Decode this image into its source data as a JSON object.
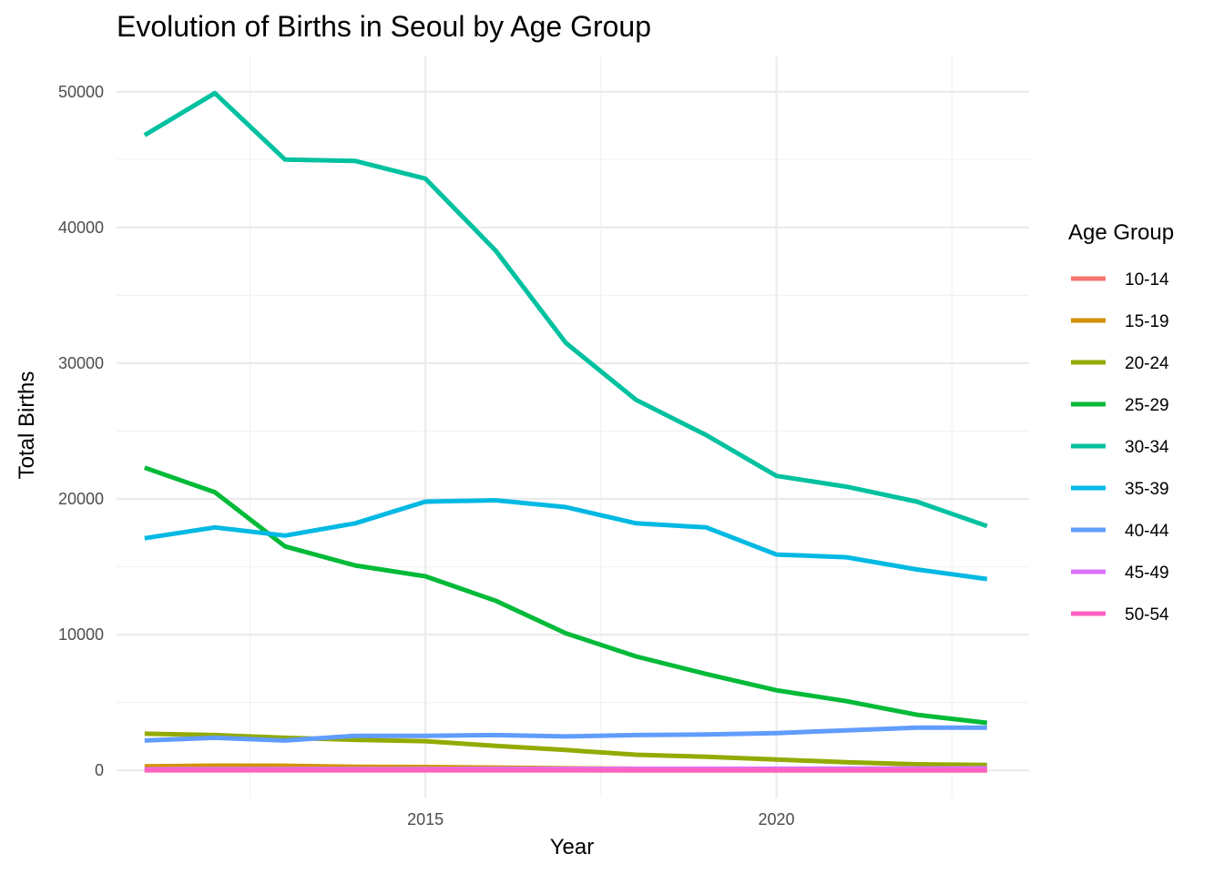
{
  "chart_data": {
    "type": "line",
    "title": "Evolution of Births in Seoul by Age Group",
    "xlabel": "Year",
    "ylabel": "Total Births",
    "x": [
      2011,
      2012,
      2013,
      2014,
      2015,
      2016,
      2017,
      2018,
      2019,
      2020,
      2021,
      2022,
      2023
    ],
    "xlim": [
      2010.6,
      2023.6
    ],
    "ylim": [
      -2000,
      52600
    ],
    "x_ticks": [
      2015,
      2020
    ],
    "x_tick_labels": [
      "2015",
      "2020"
    ],
    "y_ticks": [
      0,
      10000,
      20000,
      30000,
      40000,
      50000
    ],
    "y_tick_labels": [
      "0",
      "10000",
      "20000",
      "30000",
      "40000",
      "50000"
    ],
    "grid": true,
    "legend": {
      "title": "Age Group",
      "position": "right"
    },
    "series": [
      {
        "name": "10-14",
        "color": "#F8766D",
        "values": [
          5,
          5,
          4,
          4,
          3,
          3,
          3,
          2,
          2,
          2,
          1,
          1,
          1
        ]
      },
      {
        "name": "15-19",
        "color": "#D39200",
        "values": [
          300,
          350,
          340,
          270,
          250,
          210,
          150,
          120,
          100,
          80,
          60,
          50,
          40
        ]
      },
      {
        "name": "20-24",
        "color": "#93AA00",
        "values": [
          2700,
          2600,
          2400,
          2250,
          2150,
          1800,
          1500,
          1150,
          1000,
          800,
          600,
          450,
          400
        ]
      },
      {
        "name": "25-29",
        "color": "#00BA38",
        "values": [
          22300,
          20500,
          16500,
          15100,
          14300,
          12500,
          10100,
          8400,
          7100,
          5900,
          5100,
          4100,
          3500
        ]
      },
      {
        "name": "30-34",
        "color": "#00C19F",
        "values": [
          46800,
          49900,
          45000,
          44900,
          43600,
          38300,
          31500,
          27300,
          24700,
          21700,
          20900,
          19800,
          18000
        ]
      },
      {
        "name": "35-39",
        "color": "#00B9E3",
        "values": [
          17100,
          17900,
          17300,
          18200,
          19800,
          19900,
          19400,
          18200,
          17900,
          15900,
          15700,
          14800,
          14100
        ]
      },
      {
        "name": "40-44",
        "color": "#619CFF",
        "values": [
          2200,
          2400,
          2200,
          2550,
          2550,
          2600,
          2500,
          2600,
          2650,
          2750,
          2950,
          3150,
          3150
        ]
      },
      {
        "name": "45-49",
        "color": "#DB72FB",
        "values": [
          80,
          90,
          90,
          100,
          100,
          110,
          110,
          110,
          120,
          120,
          130,
          140,
          150
        ]
      },
      {
        "name": "50-54",
        "color": "#FF61C3",
        "values": [
          20,
          20,
          20,
          20,
          20,
          20,
          20,
          20,
          20,
          20,
          20,
          20,
          20
        ]
      }
    ]
  }
}
